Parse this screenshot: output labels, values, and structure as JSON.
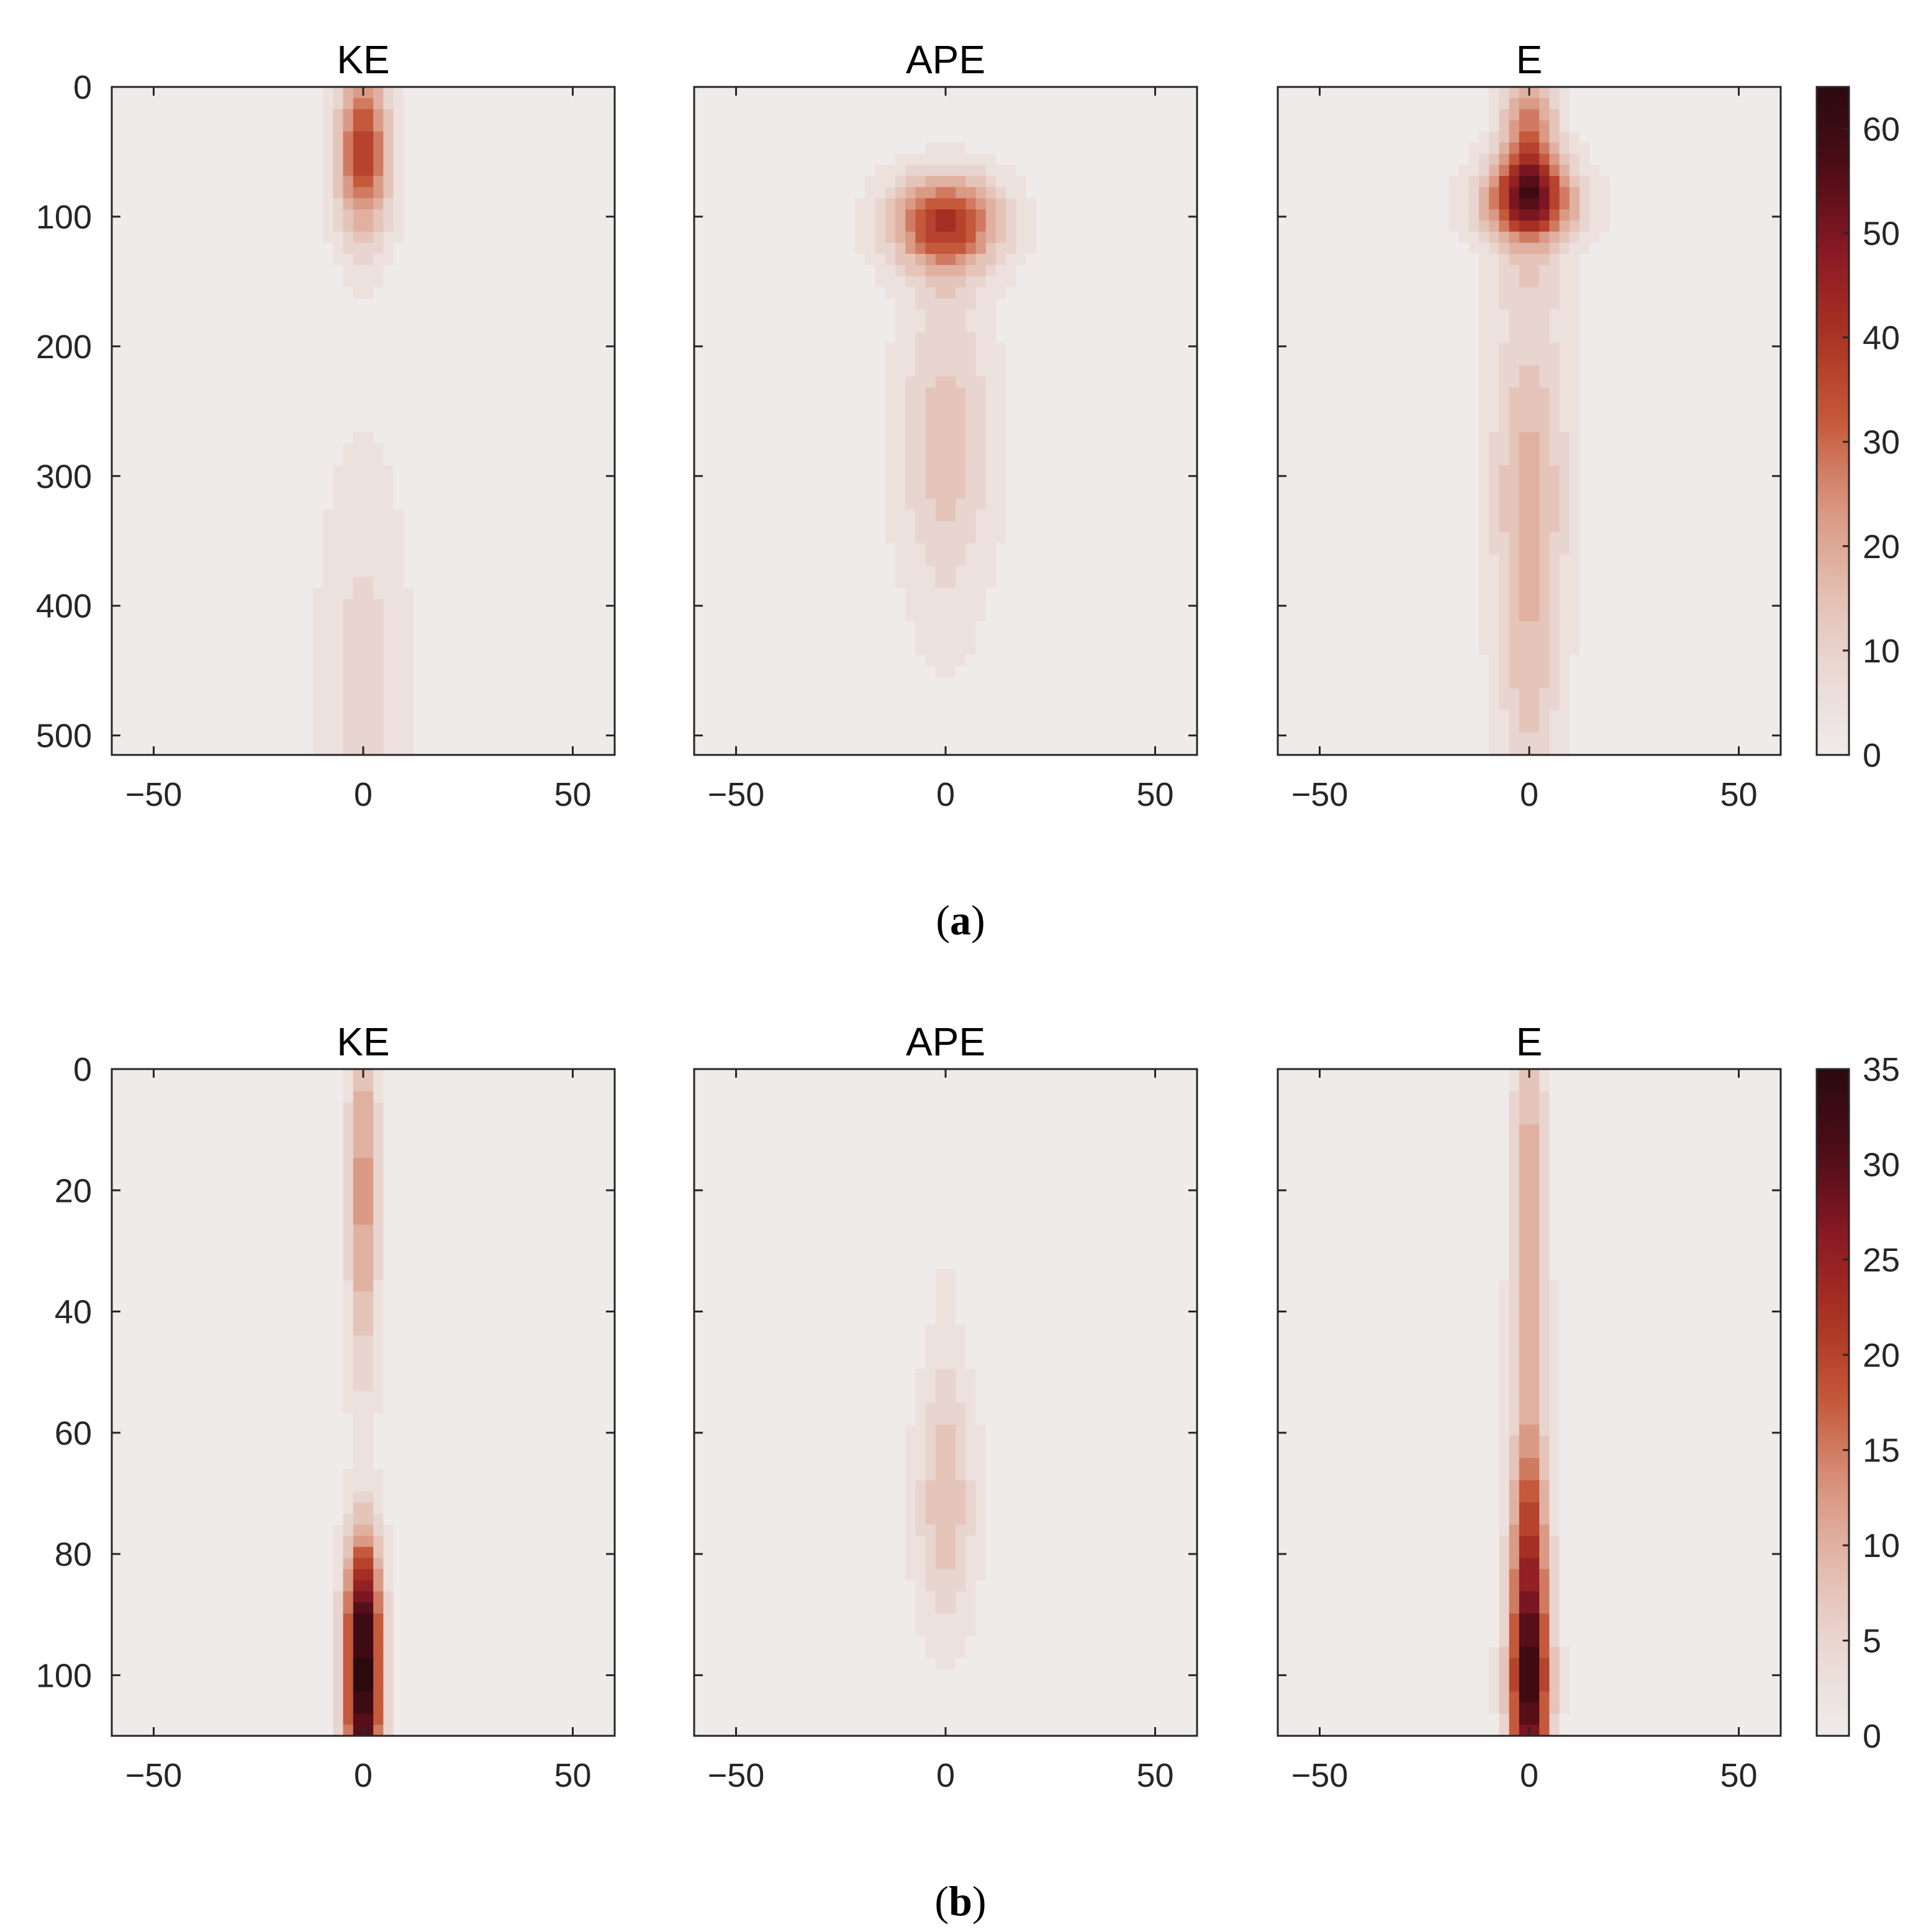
{
  "chart_data": [
    {
      "type": "heatmap",
      "caption_label": "a",
      "panels": [
        {
          "title": "KE",
          "blobs": [
            {
              "x": 0,
              "y": 50,
              "sx": 4.5,
              "sy": 45,
              "v": 38
            },
            {
              "x": 0,
              "y": 460,
              "sx": 7,
              "sy": 120,
              "v": 9
            }
          ]
        },
        {
          "title": "APE",
          "blobs": [
            {
              "x": 0,
              "y": 105,
              "sx": 9,
              "sy": 25,
              "v": 40
            },
            {
              "x": 0,
              "y": 160,
              "sx": 6,
              "sy": 30,
              "v": 4
            },
            {
              "x": 0,
              "y": 275,
              "sx": 8,
              "sy": 70,
              "v": 15
            },
            {
              "x": 0,
              "y": 410,
              "sx": 6,
              "sy": 45,
              "v": 3
            }
          ]
        },
        {
          "title": "E",
          "blobs": [
            {
              "x": 0,
              "y": 88,
              "sx": 8,
              "sy": 22,
              "v": 42
            },
            {
              "x": 0,
              "y": 40,
              "sx": 4.5,
              "sy": 40,
              "v": 30
            },
            {
              "x": 0,
              "y": 150,
              "sx": 6,
              "sy": 30,
              "v": 6
            },
            {
              "x": 0,
              "y": 300,
              "sx": 6.5,
              "sy": 90,
              "v": 17
            },
            {
              "x": 0,
              "y": 470,
              "sx": 5,
              "sy": 80,
              "v": 11
            }
          ]
        }
      ],
      "x_ticks": [
        -50,
        0,
        50
      ],
      "x_tick_labels": [
        "−50",
        "0",
        "50"
      ],
      "xlim": [
        -60,
        60
      ],
      "y_ticks": [
        0,
        100,
        200,
        300,
        400,
        500
      ],
      "y_tick_labels": [
        "0",
        "100",
        "200",
        "300",
        "400",
        "500"
      ],
      "ylim": [
        0,
        515
      ],
      "y_reversed": true,
      "colorbar": {
        "min": 0,
        "max": 64,
        "ticks": [
          0,
          10,
          20,
          30,
          40,
          50,
          60
        ],
        "tick_labels": [
          "0",
          "10",
          "20",
          "30",
          "40",
          "50",
          "60"
        ]
      }
    },
    {
      "type": "heatmap",
      "caption_label": "b",
      "panels": [
        {
          "title": "KE",
          "blobs": [
            {
              "x": 0,
              "y": 20,
              "sx": 2.5,
              "sy": 22,
              "v": 13
            },
            {
              "x": 0,
              "y": 103,
              "sx": 3,
              "sy": 14,
              "v": 35
            },
            {
              "x": 0,
              "y": 86,
              "sx": 3,
              "sy": 8,
              "v": 12
            }
          ]
        },
        {
          "title": "APE",
          "blobs": [
            {
              "x": 0,
              "y": 72,
              "sx": 5,
              "sy": 14,
              "v": 8
            },
            {
              "x": 0,
              "y": 50,
              "sx": 2.5,
              "sy": 16,
              "v": 2
            }
          ]
        },
        {
          "title": "E",
          "blobs": [
            {
              "x": 0,
              "y": 25,
              "sx": 2.8,
              "sy": 25,
              "v": 12
            },
            {
              "x": 0,
              "y": 101,
              "sx": 3.3,
              "sy": 15,
              "v": 34
            },
            {
              "x": 0,
              "y": 75,
              "sx": 3,
              "sy": 10,
              "v": 12
            },
            {
              "x": 0,
              "y": 55,
              "sx": 3,
              "sy": 12,
              "v": 4
            }
          ]
        }
      ],
      "x_ticks": [
        -50,
        0,
        50
      ],
      "x_tick_labels": [
        "−50",
        "0",
        "50"
      ],
      "xlim": [
        -60,
        60
      ],
      "y_ticks": [
        0,
        20,
        40,
        60,
        80,
        100
      ],
      "y_tick_labels": [
        "0",
        "20",
        "40",
        "60",
        "80",
        "100"
      ],
      "ylim": [
        0,
        110
      ],
      "y_reversed": true,
      "colorbar": {
        "min": 0,
        "max": 35,
        "ticks": [
          0,
          5,
          10,
          15,
          20,
          25,
          30,
          35
        ],
        "tick_labels": [
          "0",
          "5",
          "10",
          "15",
          "20",
          "25",
          "30",
          "35"
        ]
      }
    }
  ],
  "colormap": [
    "#efebea",
    "#ead9d4",
    "#e3bcaf",
    "#d9947e",
    "#c5593b",
    "#aa3322",
    "#8a1a25",
    "#4d0c16",
    "#2a0a0f"
  ],
  "captions": [
    {
      "open": "(",
      "label": "a",
      "close": ")"
    },
    {
      "open": "(",
      "label": "b",
      "close": ")"
    }
  ]
}
